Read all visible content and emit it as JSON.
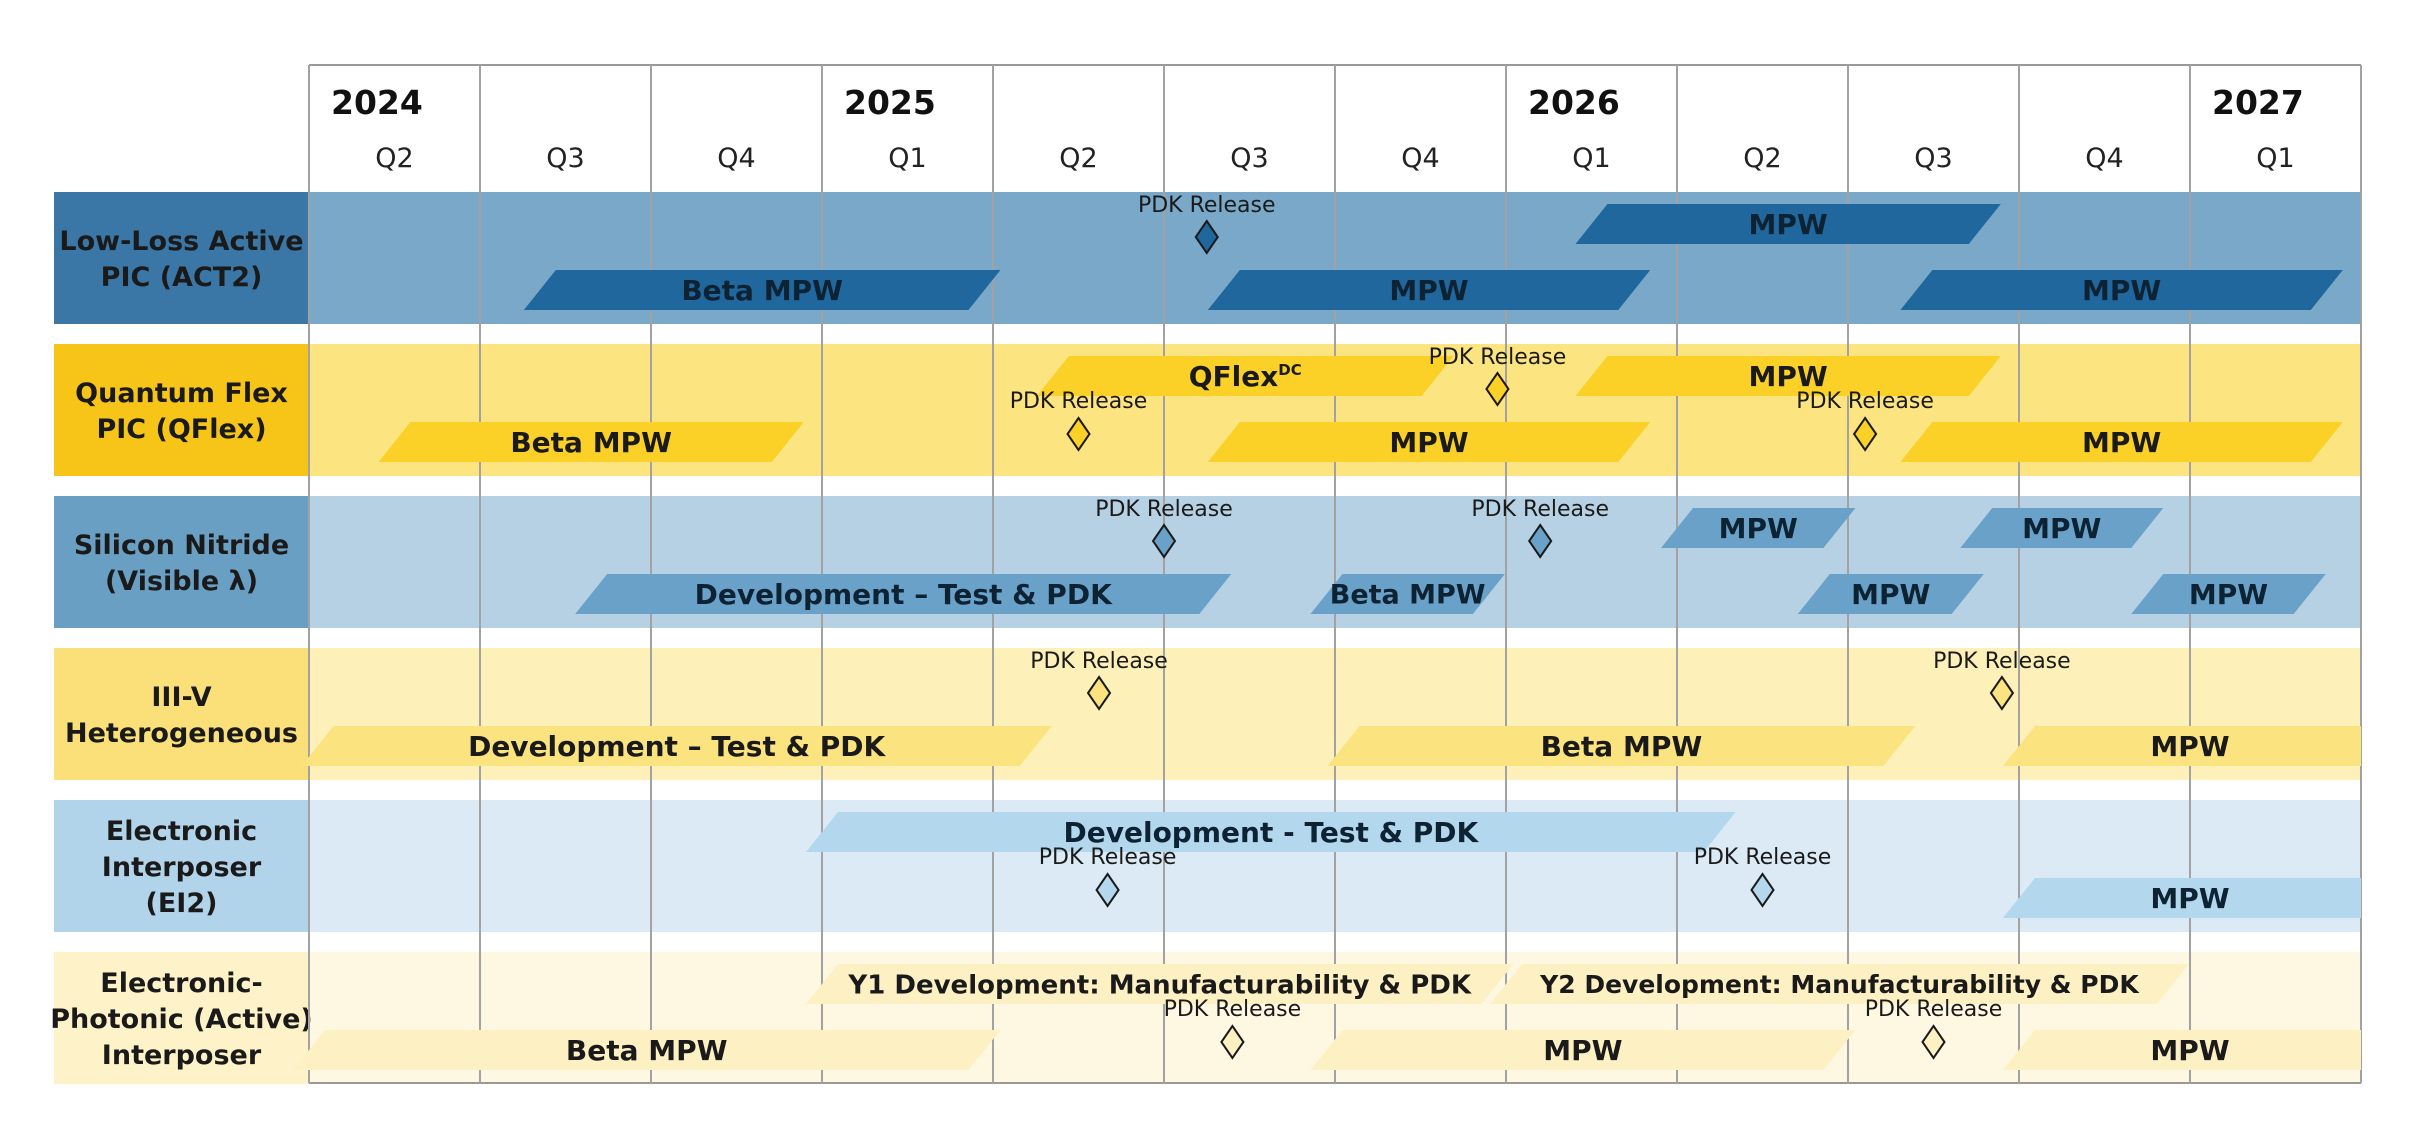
{
  "timeline": {
    "columns": [
      {
        "year": "2024",
        "quarter": "Q2"
      },
      {
        "year": "",
        "quarter": "Q3"
      },
      {
        "year": "",
        "quarter": "Q4"
      },
      {
        "year": "2025",
        "quarter": "Q1"
      },
      {
        "year": "",
        "quarter": "Q2"
      },
      {
        "year": "",
        "quarter": "Q3"
      },
      {
        "year": "",
        "quarter": "Q4"
      },
      {
        "year": "2026",
        "quarter": "Q1"
      },
      {
        "year": "",
        "quarter": "Q2"
      },
      {
        "year": "",
        "quarter": "Q3"
      },
      {
        "year": "",
        "quarter": "Q4"
      },
      {
        "year": "2027",
        "quarter": "Q1"
      }
    ]
  },
  "rows": [
    {
      "label_lines": [
        "Low-Loss Active",
        "PIC (ACT2)"
      ],
      "colors": {
        "label_bg": "#3b77a6",
        "row_bg": "#7aa8c8",
        "bar": "#1f679c",
        "text": "#0d2233",
        "diamond": "#1f679c"
      },
      "bars": [
        {
          "label": "MPW",
          "start": 7.5,
          "end": 9.8,
          "lane": "top"
        },
        {
          "label": "Beta MPW",
          "start": 1.35,
          "end": 3.95,
          "lane": "bottom"
        },
        {
          "label": "MPW",
          "start": 5.35,
          "end": 7.75,
          "lane": "bottom"
        },
        {
          "label": "MPW",
          "start": 9.4,
          "end": 11.8,
          "lane": "bottom"
        }
      ],
      "milestones": [
        {
          "label": "PDK Release",
          "at": 5.25,
          "lane": "top"
        }
      ]
    },
    {
      "label_lines": [
        "Quantum Flex",
        "PIC (QFlex)"
      ],
      "colors": {
        "label_bg": "#f7c518",
        "row_bg": "#fce580",
        "bar": "#fbd027",
        "text": "#1a1a1a",
        "diamond": "#fbd027"
      },
      "bars": [
        {
          "label": "QFlex",
          "sup": "DC",
          "start": 4.35,
          "end": 6.6,
          "lane": "top"
        },
        {
          "label": "MPW",
          "start": 7.5,
          "end": 9.8,
          "lane": "top"
        },
        {
          "label": "Beta MPW",
          "start": 0.5,
          "end": 2.8,
          "lane": "bottom"
        },
        {
          "label": "MPW",
          "start": 5.35,
          "end": 7.75,
          "lane": "bottom"
        },
        {
          "label": "MPW",
          "start": 9.4,
          "end": 11.8,
          "lane": "bottom"
        }
      ],
      "milestones": [
        {
          "label": "PDK Release",
          "at": 6.95,
          "lane": "top"
        },
        {
          "label": "PDK Release",
          "at": 4.5,
          "lane": "bottom"
        },
        {
          "label": "PDK Release",
          "at": 9.1,
          "lane": "bottom"
        }
      ]
    },
    {
      "label_lines": [
        "Silicon Nitride",
        "(Visible λ)"
      ],
      "colors": {
        "label_bg": "#6a9fc4",
        "row_bg": "#b6d1e3",
        "bar": "#6aa1c8",
        "text": "#0d2233",
        "diamond": "#6aa1c8"
      },
      "bars": [
        {
          "label": "MPW",
          "start": 8.0,
          "end": 8.95,
          "lane": "top"
        },
        {
          "label": "MPW",
          "start": 9.75,
          "end": 10.75,
          "lane": "top"
        },
        {
          "label": "Development – Test & PDK",
          "start": 1.65,
          "end": 5.3,
          "lane": "bottom"
        },
        {
          "label": "Beta MPW",
          "start": 5.95,
          "end": 6.9,
          "lane": "bottom"
        },
        {
          "label": "MPW",
          "start": 8.8,
          "end": 9.7,
          "lane": "bottom"
        },
        {
          "label": "MPW",
          "start": 10.75,
          "end": 11.7,
          "lane": "bottom"
        }
      ],
      "milestones": [
        {
          "label": "PDK Release",
          "at": 5.0,
          "lane": "top"
        },
        {
          "label": "PDK Release",
          "at": 7.2,
          "lane": "top"
        }
      ]
    },
    {
      "label_lines": [
        "III-V",
        "Heterogeneous"
      ],
      "colors": {
        "label_bg": "#fbe07a",
        "row_bg": "#fdf0b8",
        "bar": "#fbe380",
        "text": "#1a1a1a",
        "diamond": "#fbe380"
      },
      "bars": [
        {
          "label": "Development – Test & PDK",
          "start": 0.05,
          "end": 4.25,
          "lane": "bottom"
        },
        {
          "label": "Beta MPW",
          "start": 6.05,
          "end": 9.3,
          "lane": "bottom"
        },
        {
          "label": "MPW",
          "start": 10.0,
          "end": 12.0,
          "lane": "bottom"
        }
      ],
      "milestones": [
        {
          "label": "PDK Release",
          "at": 4.62,
          "lane": "top"
        },
        {
          "label": "PDK Release",
          "at": 9.9,
          "lane": "top"
        }
      ]
    },
    {
      "label_lines": [
        "Electronic",
        "Interposer",
        "(EI2)"
      ],
      "colors": {
        "label_bg": "#b2d4ea",
        "row_bg": "#dbeaf4",
        "bar": "#b3d8ee",
        "text": "#0d2233",
        "diamond": "#b3d8ee"
      },
      "bars": [
        {
          "label": "Development - Test & PDK",
          "start": 3.0,
          "end": 8.25,
          "lane": "top"
        },
        {
          "label": "MPW",
          "start": 10.0,
          "end": 12.0,
          "lane": "bottom"
        }
      ],
      "milestones": [
        {
          "label": "PDK Release",
          "at": 4.67,
          "lane": "bottom"
        },
        {
          "label": "PDK Release",
          "at": 8.5,
          "lane": "bottom"
        }
      ]
    },
    {
      "label_lines": [
        "Electronic-",
        "Photonic (Active)",
        "Interposer"
      ],
      "colors": {
        "label_bg": "#fdf2c8",
        "row_bg": "#fef8e3",
        "bar": "#fdf0c3",
        "text": "#1a1a1a",
        "diamond": "#fdf0c3"
      },
      "bars": [
        {
          "label": "Y1 Development: Manufacturability & PDK",
          "start": 3.0,
          "end": 6.95,
          "lane": "top"
        },
        {
          "label": "Y2 Development: Manufacturability & PDK",
          "start": 7.0,
          "end": 10.9,
          "lane": "top"
        },
        {
          "label": "Beta MPW",
          "start": 0.0,
          "end": 3.95,
          "lane": "bottom"
        },
        {
          "label": "MPW",
          "start": 5.95,
          "end": 8.95,
          "lane": "bottom"
        },
        {
          "label": "MPW",
          "start": 10.0,
          "end": 12.0,
          "lane": "bottom"
        }
      ],
      "milestones": [
        {
          "label": "PDK Release",
          "at": 5.4,
          "lane": "bottom"
        },
        {
          "label": "PDK Release",
          "at": 9.5,
          "lane": "bottom"
        }
      ]
    }
  ]
}
